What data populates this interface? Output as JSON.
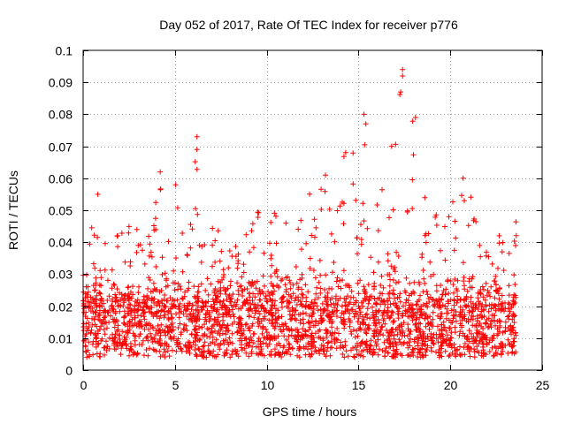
{
  "chart_data": {
    "type": "scatter",
    "title": "Day 052 of 2017, Rate Of TEC Index for receiver p776",
    "xlabel": "GPS time / hours",
    "ylabel": "ROTI / TECUs",
    "xlim": [
      0,
      25
    ],
    "ylim": [
      0,
      0.1
    ],
    "x_ticks": [
      0,
      5,
      10,
      15,
      20,
      25
    ],
    "y_ticks": [
      0,
      0.01,
      0.02,
      0.03,
      0.04,
      0.05,
      0.06,
      0.07,
      0.08,
      0.09,
      0.1
    ],
    "x_tick_labels": [
      "0",
      "5",
      "10",
      "15",
      "20",
      "25"
    ],
    "y_tick_labels": [
      "0",
      "0.01",
      "0.02",
      "0.03",
      "0.04",
      "0.05",
      "0.06",
      "0.07",
      "0.08",
      "0.09",
      "0.1"
    ],
    "grid": true,
    "marker": "+",
    "series_color": "#ff0000",
    "data_range_x": [
      0,
      23.6
    ],
    "baseline_band": [
      0.008,
      0.028
    ],
    "envelope": [
      {
        "x": 0.0,
        "y": 0.035
      },
      {
        "x": 0.8,
        "y": 0.055
      },
      {
        "x": 1.5,
        "y": 0.043
      },
      {
        "x": 2.5,
        "y": 0.047
      },
      {
        "x": 3.5,
        "y": 0.04
      },
      {
        "x": 4.2,
        "y": 0.062
      },
      {
        "x": 5.3,
        "y": 0.057
      },
      {
        "x": 6.2,
        "y": 0.073
      },
      {
        "x": 7.0,
        "y": 0.046
      },
      {
        "x": 8.5,
        "y": 0.038
      },
      {
        "x": 9.5,
        "y": 0.05
      },
      {
        "x": 11.0,
        "y": 0.049
      },
      {
        "x": 12.5,
        "y": 0.056
      },
      {
        "x": 13.2,
        "y": 0.061
      },
      {
        "x": 14.3,
        "y": 0.069
      },
      {
        "x": 15.3,
        "y": 0.08
      },
      {
        "x": 16.3,
        "y": 0.06
      },
      {
        "x": 17.4,
        "y": 0.094
      },
      {
        "x": 18.1,
        "y": 0.079
      },
      {
        "x": 19.5,
        "y": 0.046
      },
      {
        "x": 20.0,
        "y": 0.055
      },
      {
        "x": 20.7,
        "y": 0.06
      },
      {
        "x": 21.5,
        "y": 0.052
      },
      {
        "x": 22.3,
        "y": 0.043
      },
      {
        "x": 23.5,
        "y": 0.047
      }
    ],
    "outliers": [
      {
        "x": 0.8,
        "y": 0.055
      },
      {
        "x": 4.2,
        "y": 0.062
      },
      {
        "x": 6.2,
        "y": 0.073
      },
      {
        "x": 6.2,
        "y": 0.069
      },
      {
        "x": 14.3,
        "y": 0.068
      },
      {
        "x": 15.3,
        "y": 0.08
      },
      {
        "x": 15.4,
        "y": 0.077
      },
      {
        "x": 17.3,
        "y": 0.087
      },
      {
        "x": 17.4,
        "y": 0.094
      },
      {
        "x": 17.4,
        "y": 0.092
      },
      {
        "x": 18.1,
        "y": 0.079
      },
      {
        "x": 20.7,
        "y": 0.06
      },
      {
        "x": 16.8,
        "y": 0.07
      },
      {
        "x": 13.2,
        "y": 0.061
      }
    ]
  }
}
